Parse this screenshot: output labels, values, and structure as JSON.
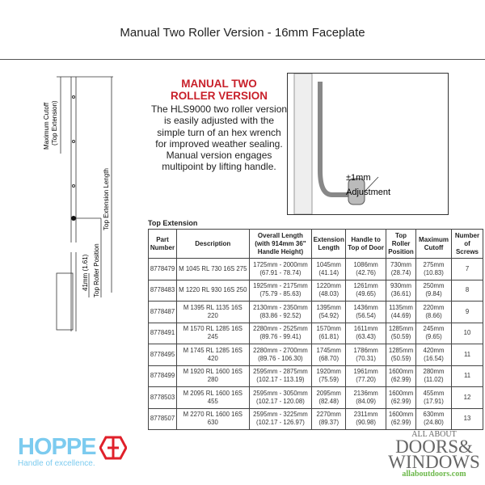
{
  "title": "Manual Two Roller Version - 16mm Faceplate",
  "heading": "MANUAL TWO ROLLER VERSION",
  "description": "The HLS9000 two roller version is easily adjusted with the simple turn of an hex wrench for improved weather sealing. Manual version engages multipoint by lifting handle.",
  "photo": {
    "label1": "±1mm",
    "label2": "Adjustment"
  },
  "diagram": {
    "max_cutoff": "Maximum Cutoff",
    "max_cutoff2": "(Top Extension)",
    "ext_length": "Top Extension Length",
    "roller_pos": "Top Roller Position",
    "dim41": "41mm (1.61)"
  },
  "table": {
    "title": "Top Extension",
    "headers": [
      "Part Number",
      "Description",
      "Overall Length (with 914mm 36\" Handle Height)",
      "Extension Length",
      "Handle to Top of Door",
      "Top Roller Position",
      "Maximum Cutoff",
      "Number of Screws"
    ],
    "rows": [
      [
        "8778479",
        "M 1045 RL 730 16S 275",
        "1725mm - 2000mm",
        "(67.91 - 78.74)",
        "1045mm",
        "(41.14)",
        "1086mm",
        "(42.76)",
        "730mm",
        "(28.74)",
        "275mm",
        "(10.83)",
        "7"
      ],
      [
        "8778483",
        "M 1220 RL 930 16S 250",
        "1925mm - 2175mm",
        "(75.79 - 85.63)",
        "1220mm",
        "(48.03)",
        "1261mm",
        "(49.65)",
        "930mm",
        "(36.61)",
        "250mm",
        "(9.84)",
        "8"
      ],
      [
        "8778487",
        "M 1395 RL 1135 16S 220",
        "2130mm - 2350mm",
        "(83.86 - 92.52)",
        "1395mm",
        "(54.92)",
        "1436mm",
        "(56.54)",
        "1135mm",
        "(44.69)",
        "220mm",
        "(8.66)",
        "9"
      ],
      [
        "8778491",
        "M 1570 RL 1285 16S 245",
        "2280mm - 2525mm",
        "(89.76 - 99.41)",
        "1570mm",
        "(61.81)",
        "1611mm",
        "(63.43)",
        "1285mm",
        "(50.59)",
        "245mm",
        "(9.65)",
        "10"
      ],
      [
        "8778495",
        "M 1745 RL 1285 16S 420",
        "2280mm - 2700mm",
        "(89.76 - 106.30)",
        "1745mm",
        "(68.70)",
        "1786mm",
        "(70.31)",
        "1285mm",
        "(50.59)",
        "420mm",
        "(16.54)",
        "11"
      ],
      [
        "8778499",
        "M 1920 RL 1600 16S 280",
        "2595mm - 2875mm",
        "(102.17 - 113.19)",
        "1920mm",
        "(75.59)",
        "1961mm",
        "(77.20)",
        "1600mm",
        "(62.99)",
        "280mm",
        "(11.02)",
        "11"
      ],
      [
        "8778503",
        "M 2095 RL 1600 16S 455",
        "2595mm - 3050mm",
        "(102.17 - 120.08)",
        "2095mm",
        "(82.48)",
        "2136mm",
        "(84.09)",
        "1600mm",
        "(62.99)",
        "455mm",
        "(17.91)",
        "12"
      ],
      [
        "8778507",
        "M 2270 RL 1600 16S 630",
        "2595mm - 3225mm",
        "(102.17 - 126.97)",
        "2270mm",
        "(89.37)",
        "2311mm",
        "(90.98)",
        "1600mm",
        "(62.99)",
        "630mm",
        "(24.80)",
        "13"
      ]
    ]
  },
  "hoppe": {
    "name": "HOPPE",
    "tagline": "Handle of excellence.",
    "color": "#7ccbef",
    "accent": "#e0202a"
  },
  "aad": {
    "line1": "ALL ABOUT",
    "line2": "DOORS&",
    "line3": "WINDOWS",
    "url": "allaboutdoors.com"
  }
}
